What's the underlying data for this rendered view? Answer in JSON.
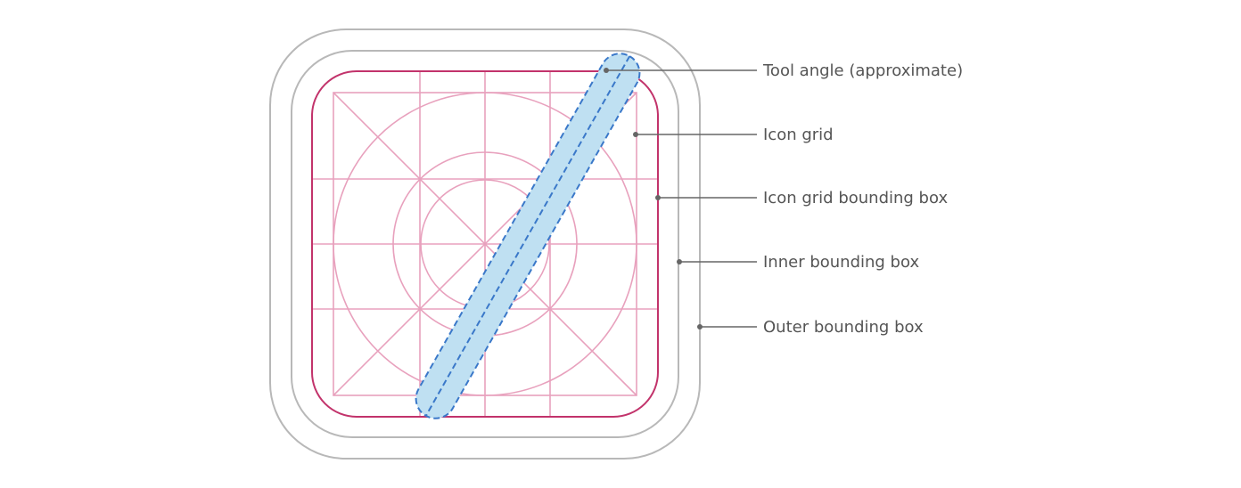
{
  "colors": {
    "outline_gray": "#b8b8b8",
    "grid_bbox": "#c2336b",
    "grid_lines": "#e8a1bd",
    "tool_fill": "#bfe0f2",
    "tool_stroke": "#3a78c9",
    "leader": "#666666",
    "label_text": "#555555"
  },
  "callouts": {
    "tool_angle": "Tool angle (approximate)",
    "icon_grid": "Icon grid",
    "icon_grid_bbox": "Icon grid bounding box",
    "inner_bbox": "Inner bounding box",
    "outer_bbox": "Outer bounding box"
  }
}
